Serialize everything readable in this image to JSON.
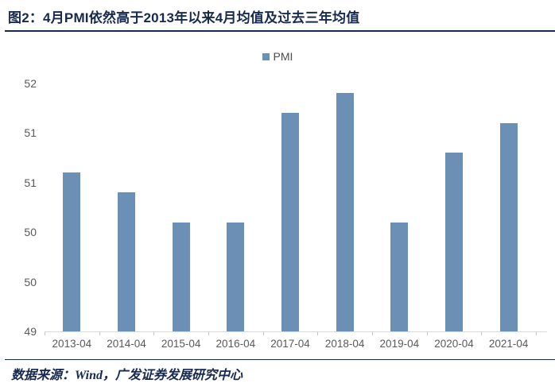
{
  "title": {
    "text": "图2：4月PMI依然高于2013年以来4月均值及过去三年均值"
  },
  "legend": {
    "label": "PMI"
  },
  "chart_data": {
    "type": "bar",
    "title": "图2：4月PMI依然高于2013年以来4月均值及过去三年均值",
    "categories": [
      "2013-04",
      "2014-04",
      "2015-04",
      "2016-04",
      "2017-04",
      "2018-04",
      "2019-04",
      "2020-04",
      "2021-04"
    ],
    "series": [
      {
        "name": "PMI",
        "values": [
          50.6,
          50.4,
          50.1,
          50.1,
          51.2,
          51.4,
          50.1,
          50.8,
          51.1
        ]
      }
    ],
    "xlabel": "",
    "ylabel": "",
    "ylim": [
      49,
      51.55
    ],
    "y_ticks": [
      {
        "value": 49.0,
        "label": "49"
      },
      {
        "value": 49.5,
        "label": "50"
      },
      {
        "value": 50.0,
        "label": "50"
      },
      {
        "value": 50.5,
        "label": "51"
      },
      {
        "value": 51.0,
        "label": "51"
      },
      {
        "value": 51.5,
        "label": "52"
      }
    ],
    "grid": false,
    "legend_position": "top-center"
  },
  "footer": {
    "source": "数据来源：Wind，广发证券发展研究中心"
  },
  "colors": {
    "bar": "#6C90B5",
    "title_text": "#16294E",
    "axis_text": "#595959",
    "axis_line": "#D9D9D9"
  }
}
